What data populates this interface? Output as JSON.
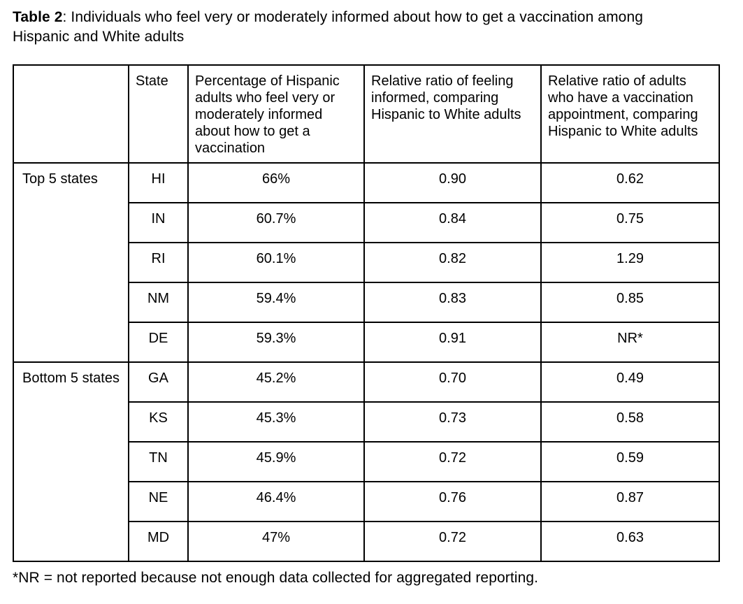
{
  "title": {
    "label": "Table 2",
    "separator": ": ",
    "text": "Individuals who feel very or moderately informed about how to get a vaccination among Hispanic and White adults"
  },
  "table": {
    "columns": [
      "",
      "State",
      "Percentage of Hispanic adults who feel very or moderately informed about how to get a vaccination",
      "Relative ratio of feeling informed, comparing Hispanic to White adults",
      "Relative ratio of adults who have a vaccination appointment, comparing Hispanic to White adults"
    ],
    "groups": [
      {
        "label": "Top 5 states",
        "rows": [
          {
            "state": "HI",
            "percentage": "66%",
            "informed_ratio": "0.90",
            "appointment_ratio": "0.62"
          },
          {
            "state": "IN",
            "percentage": "60.7%",
            "informed_ratio": "0.84",
            "appointment_ratio": "0.75"
          },
          {
            "state": "RI",
            "percentage": "60.1%",
            "informed_ratio": "0.82",
            "appointment_ratio": "1.29"
          },
          {
            "state": "NM",
            "percentage": "59.4%",
            "informed_ratio": "0.83",
            "appointment_ratio": "0.85"
          },
          {
            "state": "DE",
            "percentage": "59.3%",
            "informed_ratio": "0.91",
            "appointment_ratio": "NR*"
          }
        ]
      },
      {
        "label": "Bottom 5 states",
        "rows": [
          {
            "state": "GA",
            "percentage": "45.2%",
            "informed_ratio": "0.70",
            "appointment_ratio": "0.49"
          },
          {
            "state": "KS",
            "percentage": "45.3%",
            "informed_ratio": "0.73",
            "appointment_ratio": "0.58"
          },
          {
            "state": "TN",
            "percentage": "45.9%",
            "informed_ratio": "0.72",
            "appointment_ratio": "0.59"
          },
          {
            "state": "NE",
            "percentage": "46.4%",
            "informed_ratio": "0.76",
            "appointment_ratio": "0.87"
          },
          {
            "state": "MD",
            "percentage": "47%",
            "informed_ratio": "0.72",
            "appointment_ratio": "0.63"
          }
        ]
      }
    ]
  },
  "footnote": "*NR = not reported because not enough data collected for aggregated reporting."
}
